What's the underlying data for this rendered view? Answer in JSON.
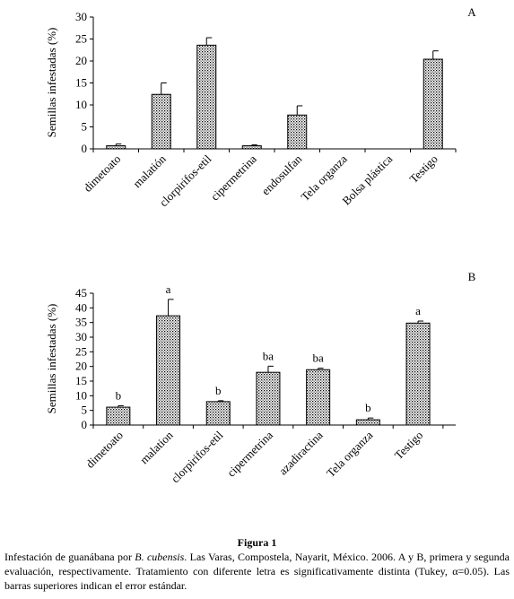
{
  "chart_data": [
    {
      "type": "bar",
      "panel_label": "A",
      "ylabel": "Semillas infestadas (%)",
      "ylim": [
        0,
        30
      ],
      "yticks": [
        0,
        5,
        10,
        15,
        20,
        25,
        30
      ],
      "categories": [
        "dimetoato",
        "malatión",
        "clorpirifos-etil",
        "cipermetrina",
        "endosulfan",
        "Tela organza",
        "Bolsa plástica",
        "Testigo"
      ],
      "values": [
        0.7,
        12.4,
        23.6,
        0.7,
        7.7,
        0,
        0,
        20.4
      ],
      "errors": [
        0.4,
        2.6,
        1.7,
        0.2,
        2.1,
        0,
        0,
        1.9
      ],
      "letters": [
        "",
        "",
        "",
        "",
        "",
        "",
        "",
        ""
      ],
      "grid": false,
      "bar_pattern": "dotted"
    },
    {
      "type": "bar",
      "panel_label": "B",
      "ylabel": "Semillas infestadas (%)",
      "ylim": [
        0,
        45
      ],
      "yticks": [
        0,
        5,
        10,
        15,
        20,
        25,
        30,
        35,
        40,
        45
      ],
      "categories": [
        "dimetoato",
        "malation",
        "clorpirifos-etil",
        "cipermetrina",
        "azadiractina",
        "Tela organza",
        "Testigo"
      ],
      "values": [
        6.1,
        37.3,
        8.0,
        18.0,
        18.9,
        1.8,
        34.8
      ],
      "errors": [
        0.5,
        5.6,
        0.3,
        2.1,
        0.5,
        0.6,
        0.7
      ],
      "letters": [
        "b",
        "a",
        "b",
        "ba",
        "ba",
        "b",
        "a"
      ],
      "grid": false,
      "bar_pattern": "dotted"
    }
  ],
  "caption": {
    "title": "Figura 1",
    "body_before_italic": "Infestación de guanábana por ",
    "species": "B. cubensis",
    "body_after_italic": ". Las Varas, Compostela, Nayarit, México. 2006. A y B, primera y segunda evaluación, respectivamente. Tratamiento con diferente letra es significativamente distinta (Tukey, α=0.05). Las barras superiores indican el error estándar."
  }
}
